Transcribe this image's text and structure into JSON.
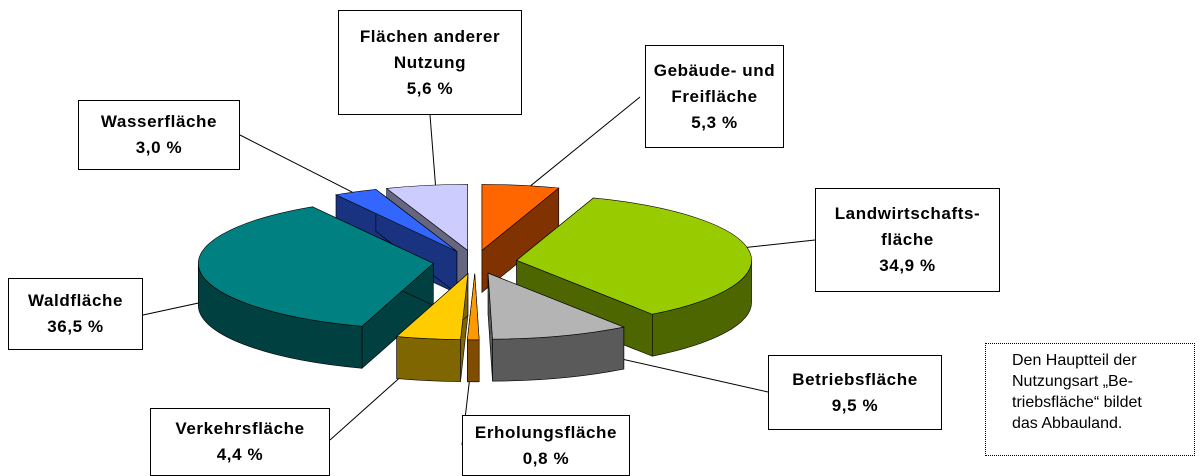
{
  "chart_data": {
    "type": "pie3d",
    "categories": [
      "Gebäude- und\nFreifläche",
      "Landwirtschafts-\nfläche",
      "Betriebsfläche",
      "Erholungsfläche",
      "Verkehrsfläche",
      "Waldfläche",
      "Wasserfläche",
      "Flächen anderer\nNutzung"
    ],
    "values": [
      5.3,
      34.9,
      9.5,
      0.8,
      4.4,
      36.5,
      3.0,
      5.6
    ],
    "value_labels": [
      "5,3 %",
      "34,9 %",
      "9,5 %",
      "0,8 %",
      "4,4 %",
      "36,5 %",
      "3,0 %",
      "5,6 %"
    ],
    "colors": [
      "#ff6600",
      "#99cc00",
      "#b4b4b4",
      "#ff9900",
      "#ffcc00",
      "#008080",
      "#3366ff",
      "#ccccff"
    ],
    "annotation": "Den Hauptteil der\nNutzungsart „Be-\ntriebsfläche“ bildet\ndas Abbauland."
  }
}
